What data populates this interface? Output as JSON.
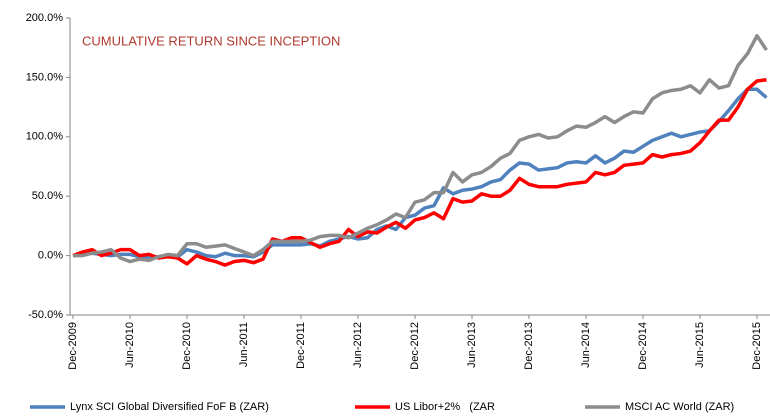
{
  "chart_data": {
    "type": "line",
    "annotation": "CUMULATIVE RETURN SINCE INCEPTION",
    "categories": [
      "Dec-2009",
      null,
      null,
      null,
      null,
      null,
      "Jun-2010",
      null,
      null,
      null,
      null,
      null,
      "Dec-2010",
      null,
      null,
      null,
      null,
      null,
      "Jun-2011",
      null,
      null,
      null,
      null,
      null,
      "Dec-2011",
      null,
      null,
      null,
      null,
      null,
      "Jun-2012",
      null,
      null,
      null,
      null,
      null,
      "Dec-2012",
      null,
      null,
      null,
      null,
      null,
      "Jun-2013",
      null,
      null,
      null,
      null,
      null,
      "Dec-2013",
      null,
      null,
      null,
      null,
      null,
      "Jun-2014",
      null,
      null,
      null,
      null,
      null,
      "Dec-2014",
      null,
      null,
      null,
      null,
      null,
      "Jun-2015",
      null,
      null,
      null,
      null,
      null,
      "Dec-2015",
      null
    ],
    "series": [
      {
        "name": "Lynx SCI Global Diversified FoF B (ZAR)",
        "color": "#4f81bd",
        "values": [
          0,
          1,
          2,
          1,
          0,
          1,
          1,
          -1,
          -2,
          -1,
          0,
          -1,
          5,
          3,
          0,
          -1,
          2,
          0,
          0,
          -1,
          3,
          9,
          9,
          9,
          9,
          10,
          8,
          12,
          14,
          16,
          14,
          15,
          22,
          25,
          22,
          32,
          34,
          40,
          42,
          57,
          52,
          55,
          56,
          58,
          62,
          64,
          72,
          78,
          77,
          72,
          73,
          74,
          78,
          79,
          78,
          84,
          78,
          82,
          88,
          87,
          92,
          97,
          100,
          103,
          100,
          102,
          104,
          105,
          113,
          122,
          132,
          140,
          140,
          133
        ]
      },
      {
        "name": "US Libor+2%   (ZAR",
        "color": "#ff0000",
        "values": [
          0,
          3,
          5,
          0,
          2,
          5,
          5,
          0,
          1,
          -2,
          -1,
          -2,
          -7,
          0,
          -3,
          -5,
          -8,
          -5,
          -4,
          -6,
          -3,
          14,
          12,
          15,
          15,
          11,
          7,
          10,
          12,
          22,
          16,
          20,
          19,
          24,
          28,
          23,
          30,
          32,
          36,
          31,
          48,
          45,
          46,
          52,
          50,
          50,
          55,
          65,
          60,
          58,
          58,
          58,
          60,
          61,
          62,
          70,
          68,
          70,
          76,
          77,
          78,
          85,
          83,
          85,
          86,
          88,
          95,
          105,
          114,
          114,
          125,
          140,
          147,
          148
        ]
      },
      {
        "name": "MSCI AC World (ZAR)",
        "color": "#8c8c8c",
        "values": [
          0,
          0,
          2,
          3,
          5,
          -2,
          -5,
          -3,
          -4,
          -1,
          1,
          0,
          10,
          10,
          7,
          8,
          9,
          6,
          3,
          0,
          5,
          12,
          12,
          12,
          12,
          13,
          16,
          17,
          17,
          15,
          19,
          23,
          26,
          30,
          35,
          32,
          45,
          47,
          53,
          53,
          70,
          62,
          68,
          70,
          75,
          82,
          86,
          97,
          100,
          102,
          99,
          100,
          105,
          109,
          108,
          112,
          117,
          112,
          117,
          121,
          120,
          132,
          137,
          139,
          140,
          143,
          137,
          148,
          141,
          143,
          160,
          170,
          185,
          173
        ]
      }
    ],
    "ylim": [
      -50,
      200
    ],
    "yticks": [
      {
        "value": -50,
        "label": "-50.0%"
      },
      {
        "value": 0,
        "label": "0.0%"
      },
      {
        "value": 50,
        "label": "50.0%"
      },
      {
        "value": 100,
        "label": "100.0%"
      },
      {
        "value": 150,
        "label": "150.0%"
      },
      {
        "value": 200,
        "label": "200.0%"
      }
    ],
    "grid": false
  }
}
